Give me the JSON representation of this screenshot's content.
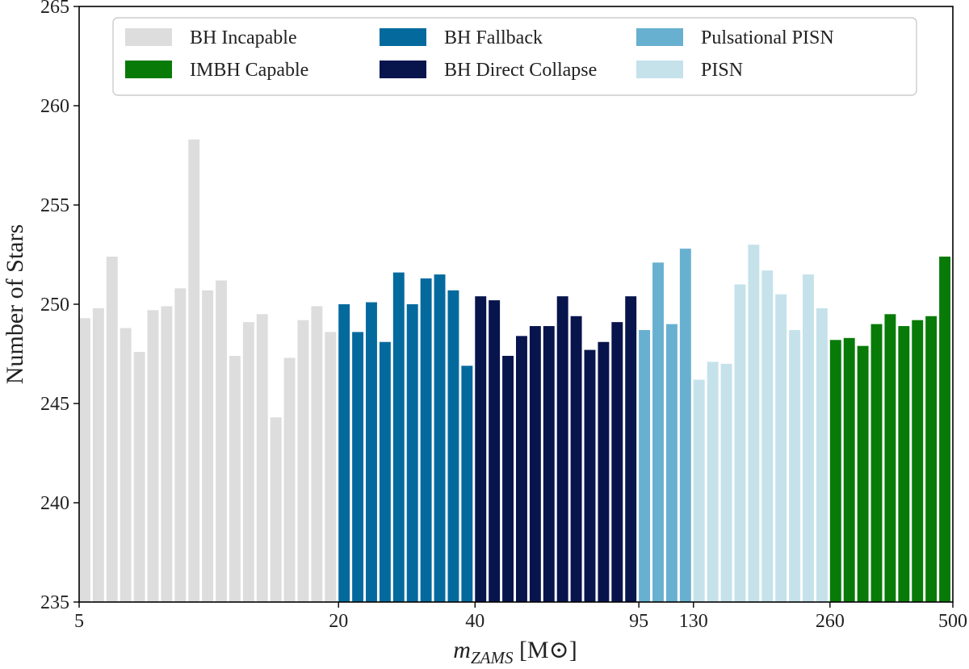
{
  "chart_data": {
    "type": "bar",
    "xlabel": "m_ZAMS [M⊙]",
    "xlabel_main": "m",
    "xlabel_sub": "ZAMS",
    "xlabel_unit": " [M⊙]",
    "ylabel": "Number of Stars",
    "ylim": [
      235,
      265
    ],
    "yticks": [
      235,
      240,
      245,
      250,
      255,
      260,
      265
    ],
    "xticks": [
      "5",
      "20",
      "40",
      "95",
      "130",
      "260",
      "500"
    ],
    "xtick_positions": [
      0,
      19,
      29,
      41,
      45,
      55,
      64
    ],
    "legend_placement": "top",
    "groups": [
      {
        "name": "BH Incapable",
        "color": "#dddddd",
        "values": [
          249.3,
          249.8,
          252.4,
          248.8,
          247.6,
          249.7,
          249.9,
          250.8,
          258.3,
          250.7,
          251.2,
          247.4,
          249.1,
          249.5,
          244.3,
          247.3,
          249.2,
          249.9,
          248.6
        ]
      },
      {
        "name": "BH Fallback",
        "color": "#046a9e",
        "values": [
          250.0,
          248.6,
          250.1,
          248.1,
          251.6,
          250.0,
          251.3,
          251.5,
          250.7,
          246.9
        ]
      },
      {
        "name": "BH Direct Collapse",
        "color": "#08144c",
        "values": [
          250.4,
          250.2,
          247.4,
          248.4,
          248.9,
          248.9,
          250.4,
          249.4,
          247.7,
          248.1,
          249.1,
          250.4
        ]
      },
      {
        "name": "Pulsational PISN",
        "color": "#68b0cf",
        "values": [
          248.7,
          252.1,
          249.0,
          252.8
        ]
      },
      {
        "name": "PISN",
        "color": "#c5e2eb",
        "values": [
          246.2,
          247.1,
          247.0,
          251.0,
          253.0,
          251.7,
          250.5,
          248.7,
          251.5,
          249.8
        ]
      },
      {
        "name": "IMBH Capable",
        "color": "#087a08",
        "values": [
          248.2,
          248.3,
          247.9,
          249.0,
          249.5,
          248.9,
          249.2,
          249.4,
          252.4
        ]
      }
    ],
    "legend": [
      {
        "label": "BH Incapable",
        "color": "#dddddd"
      },
      {
        "label": "BH Fallback",
        "color": "#046a9e"
      },
      {
        "label": "Pulsational PISN",
        "color": "#68b0cf"
      },
      {
        "label": "IMBH Capable",
        "color": "#087a08"
      },
      {
        "label": "BH Direct Collapse",
        "color": "#08144c"
      },
      {
        "label": "PISN",
        "color": "#c5e2eb"
      }
    ]
  }
}
